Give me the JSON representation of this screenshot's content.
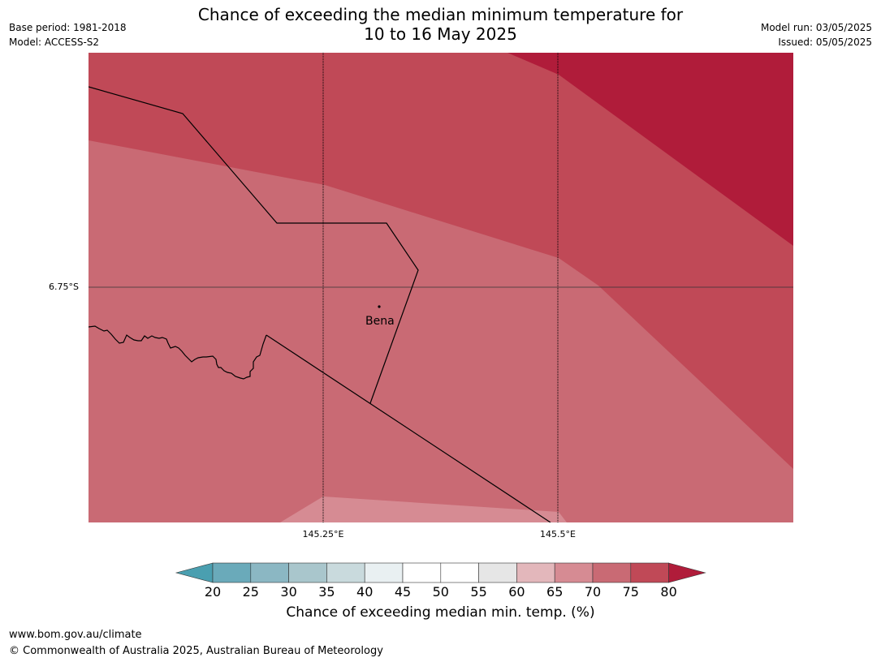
{
  "title_line1": "Chance of exceeding the median minimum temperature for",
  "title_line2": "10 to 16 May 2025",
  "base_period": "Base period: 1981-2018",
  "model": "Model: ACCESS-S2",
  "model_run": "Model run: 03/05/2025",
  "issued": "Issued: 05/05/2025",
  "lat_label": "6.75°S",
  "lon_labels": [
    "145.25°E",
    "145.5°E"
  ],
  "place": "Bena",
  "colorbar": {
    "label": "Chance of exceeding median min. temp. (%)",
    "ticks": [
      "20",
      "25",
      "30",
      "35",
      "40",
      "45",
      "50",
      "55",
      "60",
      "65",
      "70",
      "75",
      "80"
    ],
    "colors": [
      "#4a9fb0",
      "#6aaaba",
      "#8bb7c3",
      "#a9c6cc",
      "#c9dadd",
      "#e9f0f2",
      "#ffffff",
      "#ffffff",
      "#e6e6e6",
      "#e3b7bb",
      "#d68b93",
      "#c96a74",
      "#c04957",
      "#b01c3a"
    ]
  },
  "map_colors": {
    "c65_70": "#d68b93",
    "c70_75": "#c96a74",
    "c75_80": "#c04957",
    "c80": "#b01c3a"
  },
  "footer_url": "www.bom.gov.au/climate",
  "footer_copyright": "© Commonwealth of Australia 2025, Australian Bureau of Meteorology"
}
